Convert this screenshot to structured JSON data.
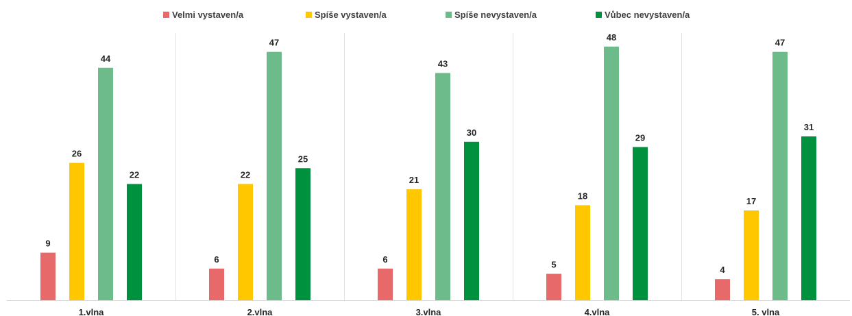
{
  "chart_data": {
    "type": "bar",
    "categories": [
      "1.vlna",
      "2.vlna",
      "3.vlna",
      "4.vlna",
      "5. vlna"
    ],
    "series": [
      {
        "name": "Velmi vystaven/a",
        "color": "#E8696A",
        "values": [
          9,
          6,
          6,
          5,
          4
        ]
      },
      {
        "name": "Spíše vystaven/a",
        "color": "#FFC700",
        "values": [
          26,
          22,
          21,
          18,
          17
        ]
      },
      {
        "name": "Spíše nevystaven/a",
        "color": "#6DBB8A",
        "values": [
          44,
          47,
          43,
          48,
          47
        ]
      },
      {
        "name": "Vůbec nevystaven/a",
        "color": "#00913F",
        "values": [
          22,
          25,
          30,
          29,
          31
        ]
      }
    ],
    "ylim": [
      0,
      50
    ],
    "legend": "top",
    "grid": false
  }
}
